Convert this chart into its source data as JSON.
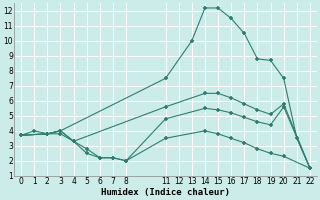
{
  "xlabel": "Humidex (Indice chaleur)",
  "bg_color": "#ccecea",
  "grid_color": "#ffffff",
  "line_color": "#2e7d6e",
  "xlim": [
    -0.5,
    22.5
  ],
  "ylim": [
    1,
    12.5
  ],
  "xticks": [
    0,
    1,
    2,
    3,
    4,
    5,
    6,
    7,
    8,
    11,
    12,
    13,
    14,
    15,
    16,
    17,
    18,
    19,
    20,
    21,
    22
  ],
  "yticks": [
    1,
    2,
    3,
    4,
    5,
    6,
    7,
    8,
    9,
    10,
    11,
    12
  ],
  "lines": [
    {
      "x": [
        0,
        1,
        2,
        3,
        11,
        13,
        14,
        15,
        16,
        17,
        18,
        19,
        20,
        21,
        22
      ],
      "y": [
        3.7,
        4.0,
        3.8,
        4.0,
        7.5,
        10.0,
        12.2,
        12.2,
        11.5,
        10.5,
        8.8,
        8.7,
        7.5,
        3.5,
        1.5
      ]
    },
    {
      "x": [
        0,
        2,
        3,
        4,
        11,
        14,
        15,
        16,
        17,
        18,
        19,
        20,
        22
      ],
      "y": [
        3.7,
        3.8,
        4.0,
        3.3,
        5.6,
        6.5,
        6.5,
        6.2,
        5.8,
        5.4,
        5.1,
        5.8,
        1.5
      ]
    },
    {
      "x": [
        0,
        2,
        3,
        4,
        5,
        6,
        7,
        8,
        11,
        14,
        15,
        16,
        17,
        18,
        19,
        20,
        22
      ],
      "y": [
        3.7,
        3.8,
        4.0,
        3.3,
        2.8,
        2.2,
        2.2,
        2.0,
        4.8,
        5.5,
        5.4,
        5.2,
        4.9,
        4.6,
        4.4,
        5.6,
        1.5
      ]
    },
    {
      "x": [
        0,
        2,
        3,
        4,
        5,
        6,
        7,
        8,
        11,
        14,
        15,
        16,
        17,
        18,
        19,
        20,
        22
      ],
      "y": [
        3.7,
        3.8,
        3.8,
        3.3,
        2.5,
        2.2,
        2.2,
        2.0,
        3.5,
        4.0,
        3.8,
        3.5,
        3.2,
        2.8,
        2.5,
        2.3,
        1.5
      ]
    }
  ]
}
